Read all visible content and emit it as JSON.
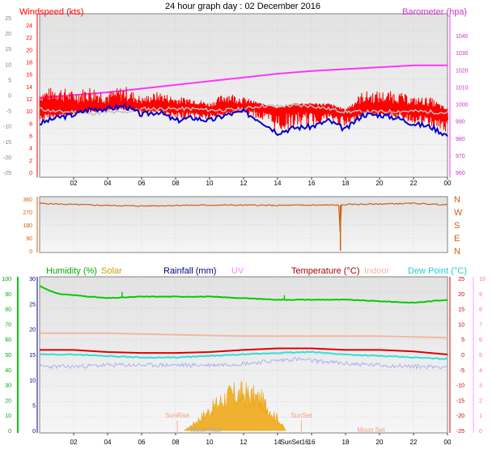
{
  "title": "24 hour graph day : 02 December 2016",
  "colors": {
    "wind": "#ff0000",
    "gust": "#ff0000",
    "baro": "#ff33ff",
    "grey": "#c0c0c0",
    "blue": "#0000cc",
    "dir": "#d06010",
    "humidity": "#00cc00",
    "solar": "#e8a000",
    "rain": "#000080",
    "uv": "#ff99ff",
    "temp": "#dd0000",
    "indoor": "#f0b8a0",
    "dew": "#33dddd",
    "lavender": "#b0b0f0"
  },
  "x_ticks": [
    "02",
    "04",
    "06",
    "08",
    "10",
    "12",
    "14",
    "16",
    "18",
    "20",
    "22",
    "00"
  ],
  "chart_data": [
    {
      "type": "line",
      "title": "Windspeed (kts)",
      "right_title": "Barometer (hpa)",
      "left_ticks_outer": [
        "25",
        "20",
        "15",
        "10",
        "5",
        "0",
        "-5",
        "-10",
        "-15",
        "-20",
        "-25"
      ],
      "left_ticks_inner": [
        "24",
        "22",
        "20",
        "18",
        "16",
        "14",
        "12",
        "10",
        "8",
        "6",
        "4",
        "2",
        "0"
      ],
      "right_ticks": [
        "1040",
        "1030",
        "1020",
        "1010",
        "1000",
        "990",
        "980",
        "970",
        "960"
      ],
      "ylim_wind": [
        0,
        25
      ],
      "ylim_baro": [
        960,
        1045
      ],
      "series": [
        {
          "key": "barometer",
          "x": [
            0,
            2,
            4,
            6,
            8,
            10,
            12,
            14,
            16,
            18,
            20,
            22,
            24
          ],
          "values": [
            1001,
            1002.5,
            1004,
            1006,
            1008,
            1010,
            1012,
            1014,
            1015.5,
            1016.5,
            1017.5,
            1018.5,
            1018.5
          ]
        },
        {
          "key": "wind_avg",
          "x": [
            0,
            1,
            2,
            3,
            4,
            5,
            6,
            7,
            8,
            9,
            10,
            11,
            12,
            13,
            14,
            15,
            16,
            17,
            18,
            19,
            20,
            21,
            22,
            23,
            24
          ],
          "values": [
            11,
            10.5,
            10.5,
            10.2,
            10.4,
            10.4,
            11,
            11,
            11,
            11,
            10.8,
            10.8,
            11,
            11.5,
            11.5,
            11.5,
            11.5,
            11,
            10.5,
            10.5,
            10.5,
            10.6,
            10.6,
            10.5,
            10.3
          ]
        },
        {
          "key": "wind_lull",
          "x": [
            0,
            1,
            2,
            3,
            4,
            5,
            6,
            7,
            8,
            9,
            10,
            11,
            12,
            13,
            14,
            15,
            16,
            17,
            18,
            19,
            20,
            21,
            22,
            23,
            24
          ],
          "values": [
            8.5,
            9.5,
            10,
            11,
            11,
            11.5,
            10,
            10.5,
            9,
            9.5,
            9,
            10,
            10.5,
            9,
            7,
            7.8,
            8,
            9,
            7.5,
            10,
            10,
            9.5,
            8.5,
            8,
            6.5
          ]
        },
        {
          "key": "wind_gust",
          "x": [
            0,
            1,
            2,
            3,
            4,
            5,
            6,
            7,
            8,
            9,
            10,
            11,
            12,
            13,
            14,
            15,
            16,
            17,
            18,
            19,
            20,
            21,
            22,
            23,
            24
          ],
          "values": [
            14,
            15,
            14,
            15,
            14,
            15,
            13,
            14,
            13,
            13,
            12,
            14,
            13,
            12,
            11,
            12,
            12,
            12,
            11,
            14,
            14,
            14,
            13,
            13,
            11
          ]
        }
      ]
    },
    {
      "type": "line",
      "title": "Wind Direction",
      "ticks": [
        "360",
        "270",
        "180",
        "90",
        "0"
      ],
      "compass": [
        "N",
        "W",
        "S",
        "E",
        "N"
      ],
      "ylim": [
        0,
        360
      ],
      "series": [
        {
          "key": "direction",
          "x": [
            0,
            2,
            4,
            6,
            8,
            10,
            12,
            14,
            16,
            17.65,
            17.7,
            17.75,
            18,
            20,
            22,
            24
          ],
          "values": [
            330,
            322,
            316,
            312,
            316,
            318,
            318,
            316,
            318,
            318,
            0,
            318,
            322,
            326,
            330,
            320
          ]
        }
      ]
    },
    {
      "type": "line",
      "legend": [
        "Humidity (%)",
        "Solar",
        "Rainfall (mm)",
        "UV",
        "Temperature (°C)",
        "Indoor",
        "Dew Point (°C)"
      ],
      "left_ticks_outer": [
        "100",
        "90",
        "80",
        "70",
        "60",
        "50",
        "40",
        "30",
        "20",
        "10",
        "0"
      ],
      "left_ticks_inner": [
        "30",
        "25",
        "20",
        "15",
        "10",
        "5",
        "0"
      ],
      "right_ticks_outer": [
        "25",
        "20",
        "15",
        "10",
        "5",
        "0",
        "-5",
        "-10",
        "-15",
        "-20",
        "-25"
      ],
      "right_ticks_inner": [
        "10",
        "9",
        "8",
        "7",
        "6",
        "5",
        "4",
        "3",
        "2",
        "1",
        "0"
      ],
      "annotations": [
        "SunRise",
        "SunSet",
        "Moon Rise",
        "SunSet16",
        "Moon Set"
      ],
      "ylim_humidity": [
        0,
        100
      ],
      "ylim_temp": [
        -25,
        25
      ],
      "series": [
        {
          "key": "humidity",
          "x": [
            0,
            1,
            2,
            3,
            4,
            6,
            8,
            10,
            12,
            14,
            16,
            18,
            20,
            22,
            24
          ],
          "values": [
            95,
            90,
            89,
            88,
            87,
            88,
            88,
            88,
            87,
            86,
            86,
            86,
            85,
            84,
            86
          ]
        },
        {
          "key": "indoor",
          "x": [
            0,
            4,
            8,
            12,
            16,
            20,
            24
          ],
          "values": [
            7,
            7,
            6.5,
            6,
            6,
            6,
            5.5
          ]
        },
        {
          "key": "temperature",
          "x": [
            0,
            2,
            4,
            6,
            8,
            10,
            12,
            14,
            16,
            18,
            20,
            22,
            24
          ],
          "values": [
            1.5,
            1.5,
            0.8,
            0.5,
            0.5,
            0.8,
            1.5,
            2,
            2,
            1.5,
            1.5,
            1,
            0
          ]
        },
        {
          "key": "dew_point",
          "x": [
            0,
            2,
            4,
            6,
            8,
            10,
            12,
            14,
            16,
            18,
            20,
            22,
            24
          ],
          "values": [
            0,
            0,
            -0.5,
            -1,
            -1,
            -0.5,
            0,
            0.5,
            0.8,
            0,
            -0.5,
            -1,
            -1.5
          ]
        },
        {
          "key": "lavender",
          "x": [
            0,
            2,
            4,
            6,
            8,
            10,
            12,
            14,
            15,
            16,
            18,
            20,
            22,
            24
          ],
          "values": [
            -4,
            -4,
            -3.5,
            -3.5,
            -3.5,
            -3.5,
            -3,
            -2,
            -1.5,
            -2,
            -3,
            -3.5,
            -4,
            -4
          ]
        },
        {
          "key": "solar",
          "x": [
            8.5,
            9,
            10,
            11,
            12,
            13,
            14,
            14.5
          ],
          "values": [
            0,
            0.4,
            1.3,
            2.2,
            2.4,
            2,
            0.8,
            0
          ]
        }
      ]
    }
  ]
}
